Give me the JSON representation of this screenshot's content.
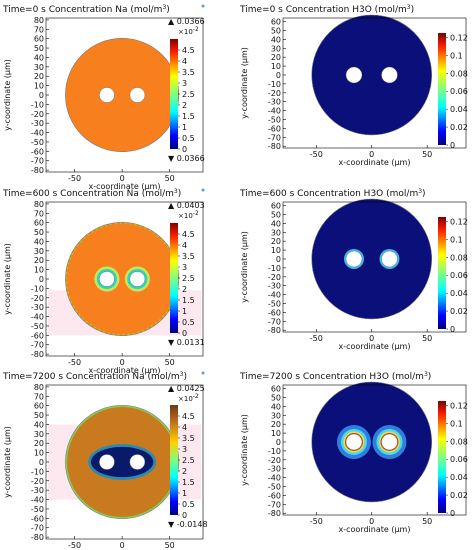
{
  "panels": [
    {
      "id": "p1",
      "title": {
        "time": "Time=0 s",
        "quantity": "Concentration Na",
        "unit": "(mol/m",
        "sup": "3",
        "close": ")"
      },
      "colorbar": {
        "max_label": "▲ 0.0366",
        "min_label": "▼ 0.0366",
        "multiplier": "×10",
        "multiplier_exp": "-2",
        "ticks": [
          "4.5",
          "4",
          "3.5",
          "3",
          "2.5",
          "2",
          "1.5",
          "1",
          "0.5",
          "0"
        ]
      }
    },
    {
      "id": "p2",
      "title": {
        "time": "Time=0 s",
        "quantity": "Concentration H3O",
        "unit": "(mol/m",
        "sup": "3",
        "close": ")"
      },
      "colorbar": {
        "ticks": [
          "0.12",
          "0.1",
          "0.08",
          "0.06",
          "0.04",
          "0.02",
          "0"
        ]
      }
    },
    {
      "id": "p3",
      "title": {
        "time": "Time=600 s",
        "quantity": "Concentration Na",
        "unit": "(mol/m",
        "sup": "3",
        "close": ")"
      },
      "colorbar": {
        "max_label": "▲ 0.0403",
        "min_label": "▼ 0.0131",
        "multiplier": "×10",
        "multiplier_exp": "-2",
        "ticks": [
          "4.5",
          "4",
          "3.5",
          "3",
          "2.5",
          "2",
          "1.5",
          "1",
          "0.5",
          "0"
        ]
      }
    },
    {
      "id": "p4",
      "title": {
        "time": "Time=600 s",
        "quantity": "Concentration H3O",
        "unit": "(mol/m",
        "sup": "3",
        "close": ")"
      },
      "colorbar": {
        "ticks": [
          "0.12",
          "0.1",
          "0.08",
          "0.06",
          "0.04",
          "0.02",
          "0"
        ]
      }
    },
    {
      "id": "p5",
      "title": {
        "time": "Time=7200 s",
        "quantity": "Concentration Na",
        "unit": "(mol/m",
        "sup": "3",
        "close": ")"
      },
      "colorbar": {
        "max_label": "▲ 0.0425",
        "min_label": "▼ -0.0148",
        "multiplier": "×10",
        "multiplier_exp": "-2",
        "ticks": [
          "4.5",
          "4",
          "3.5",
          "3",
          "2.5",
          "2",
          "1.5",
          "1",
          "0.5",
          "0"
        ]
      }
    },
    {
      "id": "p6",
      "title": {
        "time": "Time=7200 s",
        "quantity": "Concentration H3O",
        "unit": "(mol/m",
        "sup": "3",
        "close": ")"
      },
      "colorbar": {
        "ticks": [
          "0.12",
          "0.1",
          "0.08",
          "0.06",
          "0.04",
          "0.02",
          "0"
        ]
      }
    }
  ],
  "axes": {
    "xlabel": "x-coordinate (μm)",
    "ylabel": "y-coordinate (μm)",
    "xticks": [
      "-50",
      "0",
      "50"
    ],
    "yticks": [
      "80",
      "70",
      "60",
      "50",
      "40",
      "30",
      "20",
      "10",
      "0",
      "-10",
      "-20",
      "-30",
      "-40",
      "-50",
      "-60",
      "-70",
      "-80"
    ]
  },
  "chart_data": [
    {
      "type": "heatmap",
      "title": "Time=0 s Concentration Na (mol/m3)",
      "xlabel": "x-coordinate (μm)",
      "ylabel": "y-coordinate (μm)",
      "xlim": [
        -80,
        85
      ],
      "ylim": [
        -82,
        82
      ],
      "domain": {
        "disk_radius": 60,
        "hole_radius": 8,
        "hole_centers": [
          [
            -16,
            0
          ],
          [
            16,
            0
          ]
        ]
      },
      "value_range": [
        0.0366,
        0.0366
      ],
      "colorbar_range": [
        0,
        0.05
      ],
      "colormap": "rainbow",
      "fill_value": 0.0366,
      "fill_color": "#f77f1e"
    },
    {
      "type": "heatmap",
      "title": "Time=0 s Concentration H3O (mol/m3)",
      "xlabel": "x-coordinate (μm)",
      "ylabel": "y-coordinate (μm)",
      "xlim": [
        -80,
        85
      ],
      "ylim": [
        -82,
        64
      ],
      "domain": {
        "disk_radius": 60,
        "hole_radius": 8,
        "hole_centers": [
          [
            -16,
            0
          ],
          [
            16,
            0
          ]
        ]
      },
      "colorbar_range": [
        0,
        0.12
      ],
      "colormap": "rainbow",
      "fill_value": 0,
      "fill_color": "#0a0f7a"
    },
    {
      "type": "heatmap",
      "title": "Time=600 s Concentration Na (mol/m3)",
      "xlabel": "x-coordinate (μm)",
      "ylabel": "y-coordinate (μm)",
      "xlim": [
        -80,
        85
      ],
      "ylim": [
        -82,
        82
      ],
      "domain": {
        "disk_radius": 60,
        "hole_radius": 8,
        "hole_centers": [
          [
            -16,
            0
          ],
          [
            16,
            0
          ]
        ]
      },
      "value_range": [
        0.0131,
        0.0403
      ],
      "colorbar_range": [
        0,
        0.05
      ],
      "colormap": "rainbow",
      "fill_value": 0.0366,
      "fill_color": "#f77f1e",
      "features": [
        "depleted ring (~0.013) around each hole with green/yellow halo",
        "green band near outer edge"
      ]
    },
    {
      "type": "heatmap",
      "title": "Time=600 s Concentration H3O (mol/m3)",
      "xlabel": "x-coordinate (μm)",
      "ylabel": "y-coordinate (μm)",
      "xlim": [
        -80,
        85
      ],
      "ylim": [
        -82,
        64
      ],
      "domain": {
        "disk_radius": 60,
        "hole_radius": 8,
        "hole_centers": [
          [
            -16,
            0
          ],
          [
            16,
            0
          ]
        ]
      },
      "colorbar_range": [
        0,
        0.12
      ],
      "colormap": "rainbow",
      "fill_value": 0,
      "fill_color": "#0a0f7a",
      "features": [
        "thin cyan ring around each hole (~0.03)"
      ]
    },
    {
      "type": "heatmap",
      "title": "Time=7200 s Concentration Na (mol/m3)",
      "xlabel": "x-coordinate (μm)",
      "ylabel": "y-coordinate (μm)",
      "xlim": [
        -80,
        85
      ],
      "ylim": [
        -82,
        82
      ],
      "domain": {
        "disk_radius": 60,
        "hole_radius": 8,
        "hole_centers": [
          [
            -16,
            0
          ],
          [
            16,
            0
          ]
        ]
      },
      "value_range": [
        -0.0148,
        0.0425
      ],
      "colorbar_range": [
        0,
        0.05
      ],
      "colormap": "rainbow",
      "fill_value": 0.04,
      "fill_color": "#c97a1f",
      "features": [
        "dark depleted peanut-shaped zone enclosing both holes",
        "green outline at outer edge"
      ]
    },
    {
      "type": "heatmap",
      "title": "Time=7200 s Concentration H3O (mol/m3)",
      "xlabel": "x-coordinate (μm)",
      "ylabel": "y-coordinate (μm)",
      "xlim": [
        -80,
        85
      ],
      "ylim": [
        -82,
        64
      ],
      "domain": {
        "disk_radius": 60,
        "hole_radius": 8,
        "hole_centers": [
          [
            -16,
            0
          ],
          [
            16,
            0
          ]
        ]
      },
      "colorbar_range": [
        0,
        0.12
      ],
      "colormap": "rainbow",
      "fill_value": 0,
      "fill_color": "#0a0f7a",
      "features": [
        "cyan/yellow halos around holes",
        "red ring at hole boundary (~0.11)"
      ]
    }
  ],
  "colors": {
    "na_fill": "#f77f1e",
    "na_fill_late": "#c97a1f",
    "h3o_fill": "#0a0f7a",
    "axis_box": "#000000"
  }
}
